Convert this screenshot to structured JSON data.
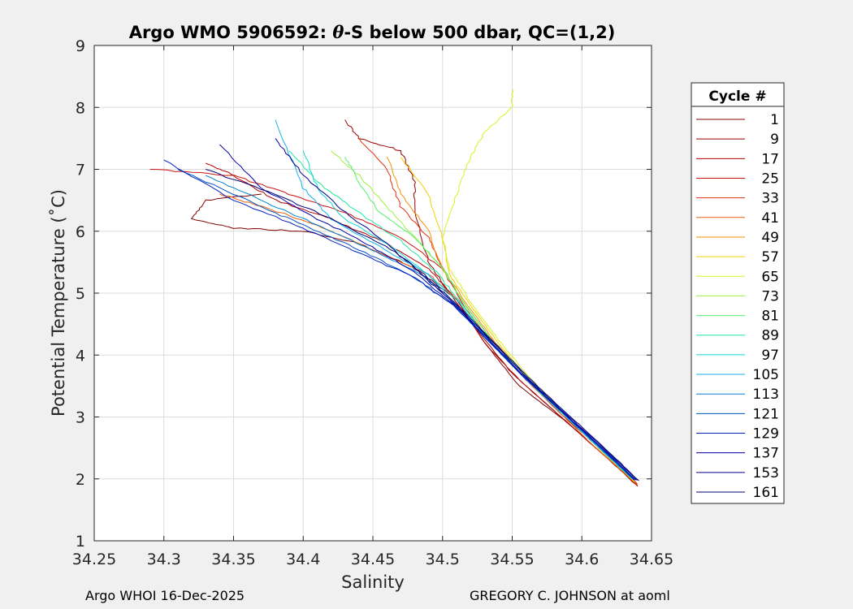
{
  "chart_data": {
    "type": "line",
    "title_prefix": "Argo WMO 5906592: ",
    "title_symbol": "θ",
    "title_suffix": "-S below 500 dbar,  QC=(1,2)",
    "xlabel": "Salinity",
    "ylabel": "Potential Temperature (˚C)",
    "xlim": [
      34.25,
      34.65
    ],
    "ylim": [
      1,
      9
    ],
    "xticks": [
      "34.25",
      "34.3",
      "34.35",
      "34.4",
      "34.45",
      "34.5",
      "34.55",
      "34.6",
      "34.65"
    ],
    "yticks": [
      "1",
      "2",
      "3",
      "4",
      "5",
      "6",
      "7",
      "8",
      "9"
    ],
    "grid": true,
    "legend": {
      "title": "Cycle #",
      "position": "right",
      "entries": [
        {
          "label": "1",
          "color": "#800000"
        },
        {
          "label": "9",
          "color": "#9a0000"
        },
        {
          "label": "17",
          "color": "#b40000"
        },
        {
          "label": "25",
          "color": "#cc1010"
        },
        {
          "label": "33",
          "color": "#e03010"
        },
        {
          "label": "41",
          "color": "#ec6010"
        },
        {
          "label": "49",
          "color": "#f09000"
        },
        {
          "label": "57",
          "color": "#f0d000"
        },
        {
          "label": "65",
          "color": "#d8f020"
        },
        {
          "label": "73",
          "color": "#a0f040"
        },
        {
          "label": "81",
          "color": "#50f070"
        },
        {
          "label": "89",
          "color": "#20e8a0"
        },
        {
          "label": "97",
          "color": "#10d8d0"
        },
        {
          "label": "105",
          "color": "#10b0e8"
        },
        {
          "label": "113",
          "color": "#0080d0"
        },
        {
          "label": "121",
          "color": "#0050c0"
        },
        {
          "label": "129",
          "color": "#0020c0"
        },
        {
          "label": "137",
          "color": "#0000a8"
        },
        {
          "label": "153",
          "color": "#000090"
        },
        {
          "label": "161",
          "color": "#000078"
        }
      ]
    },
    "series": [
      {
        "name": "1",
        "points": [
          [
            34.64,
            1.88
          ],
          [
            34.62,
            2.3
          ],
          [
            34.59,
            2.9
          ],
          [
            34.555,
            3.5
          ],
          [
            34.53,
            4.2
          ],
          [
            34.51,
            4.9
          ],
          [
            34.48,
            5.4
          ],
          [
            34.44,
            5.8
          ],
          [
            34.4,
            6.0
          ],
          [
            34.35,
            6.05
          ],
          [
            34.32,
            6.2
          ],
          [
            34.33,
            6.5
          ],
          [
            34.37,
            6.6
          ]
        ]
      },
      {
        "name": "9",
        "points": [
          [
            34.64,
            1.9
          ],
          [
            34.61,
            2.5
          ],
          [
            34.58,
            3.1
          ],
          [
            34.55,
            3.7
          ],
          [
            34.525,
            4.4
          ],
          [
            34.505,
            5.0
          ],
          [
            34.49,
            5.5
          ],
          [
            34.48,
            6.3
          ],
          [
            34.48,
            6.8
          ],
          [
            34.47,
            7.3
          ],
          [
            34.44,
            7.5
          ],
          [
            34.43,
            7.8
          ]
        ]
      },
      {
        "name": "17",
        "points": [
          [
            34.64,
            1.9
          ],
          [
            34.615,
            2.4
          ],
          [
            34.585,
            3.0
          ],
          [
            34.555,
            3.6
          ],
          [
            34.53,
            4.2
          ],
          [
            34.51,
            4.9
          ],
          [
            34.49,
            5.4
          ],
          [
            34.46,
            5.8
          ],
          [
            34.42,
            6.2
          ],
          [
            34.38,
            6.5
          ],
          [
            34.35,
            6.9
          ],
          [
            34.33,
            7.1
          ]
        ]
      },
      {
        "name": "25",
        "points": [
          [
            34.64,
            1.92
          ],
          [
            34.615,
            2.45
          ],
          [
            34.585,
            3.05
          ],
          [
            34.56,
            3.6
          ],
          [
            34.535,
            4.2
          ],
          [
            34.515,
            4.8
          ],
          [
            34.5,
            5.4
          ],
          [
            34.47,
            5.9
          ],
          [
            34.43,
            6.3
          ],
          [
            34.39,
            6.6
          ],
          [
            34.35,
            6.9
          ],
          [
            34.29,
            7.0
          ]
        ]
      },
      {
        "name": "33",
        "points": [
          [
            34.638,
            1.95
          ],
          [
            34.612,
            2.5
          ],
          [
            34.585,
            3.1
          ],
          [
            34.56,
            3.65
          ],
          [
            34.535,
            4.25
          ],
          [
            34.515,
            4.85
          ],
          [
            34.5,
            5.4
          ],
          [
            34.49,
            5.9
          ],
          [
            34.47,
            6.4
          ],
          [
            34.46,
            7.0
          ],
          [
            34.44,
            7.5
          ]
        ]
      },
      {
        "name": "41",
        "points": [
          [
            34.64,
            1.9
          ],
          [
            34.61,
            2.5
          ],
          [
            34.585,
            3.05
          ],
          [
            34.56,
            3.6
          ],
          [
            34.535,
            4.2
          ],
          [
            34.515,
            4.8
          ],
          [
            34.49,
            5.3
          ],
          [
            34.45,
            5.7
          ],
          [
            34.41,
            6.1
          ],
          [
            34.37,
            6.4
          ],
          [
            34.34,
            6.6
          ]
        ]
      },
      {
        "name": "49",
        "points": [
          [
            34.638,
            1.95
          ],
          [
            34.612,
            2.5
          ],
          [
            34.587,
            3.05
          ],
          [
            34.562,
            3.6
          ],
          [
            34.538,
            4.2
          ],
          [
            34.518,
            4.8
          ],
          [
            34.5,
            5.4
          ],
          [
            34.49,
            6.0
          ],
          [
            34.47,
            6.6
          ],
          [
            34.46,
            7.2
          ]
        ]
      },
      {
        "name": "57",
        "points": [
          [
            34.638,
            1.95
          ],
          [
            34.612,
            2.5
          ],
          [
            34.587,
            3.05
          ],
          [
            34.562,
            3.6
          ],
          [
            34.54,
            4.2
          ],
          [
            34.52,
            4.8
          ],
          [
            34.505,
            5.3
          ],
          [
            34.5,
            5.9
          ],
          [
            34.49,
            6.6
          ],
          [
            34.47,
            7.2
          ]
        ]
      },
      {
        "name": "65",
        "points": [
          [
            34.636,
            2.0
          ],
          [
            34.61,
            2.55
          ],
          [
            34.585,
            3.1
          ],
          [
            34.562,
            3.65
          ],
          [
            34.54,
            4.25
          ],
          [
            34.52,
            4.85
          ],
          [
            34.505,
            5.4
          ],
          [
            34.5,
            5.9
          ],
          [
            34.51,
            6.6
          ],
          [
            34.52,
            7.2
          ],
          [
            34.53,
            7.6
          ],
          [
            34.55,
            8.0
          ],
          [
            34.55,
            8.3
          ]
        ]
      },
      {
        "name": "73",
        "points": [
          [
            34.636,
            2.0
          ],
          [
            34.61,
            2.55
          ],
          [
            34.585,
            3.1
          ],
          [
            34.56,
            3.65
          ],
          [
            34.535,
            4.25
          ],
          [
            34.515,
            4.85
          ],
          [
            34.5,
            5.4
          ],
          [
            34.48,
            5.9
          ],
          [
            34.46,
            6.4
          ],
          [
            34.44,
            6.9
          ],
          [
            34.42,
            7.3
          ]
        ]
      },
      {
        "name": "81",
        "points": [
          [
            34.636,
            2.0
          ],
          [
            34.61,
            2.55
          ],
          [
            34.585,
            3.1
          ],
          [
            34.56,
            3.65
          ],
          [
            34.535,
            4.25
          ],
          [
            34.515,
            4.85
          ],
          [
            34.5,
            5.4
          ],
          [
            34.48,
            5.9
          ],
          [
            34.455,
            6.3
          ],
          [
            34.44,
            6.8
          ],
          [
            34.43,
            7.2
          ]
        ]
      },
      {
        "name": "89",
        "points": [
          [
            34.636,
            2.0
          ],
          [
            34.61,
            2.55
          ],
          [
            34.584,
            3.1
          ],
          [
            34.558,
            3.65
          ],
          [
            34.533,
            4.25
          ],
          [
            34.513,
            4.85
          ],
          [
            34.495,
            5.35
          ],
          [
            34.47,
            5.85
          ],
          [
            34.44,
            6.3
          ],
          [
            34.41,
            6.8
          ],
          [
            34.39,
            7.3
          ]
        ]
      },
      {
        "name": "97",
        "points": [
          [
            34.636,
            2.0
          ],
          [
            34.61,
            2.55
          ],
          [
            34.584,
            3.1
          ],
          [
            34.558,
            3.65
          ],
          [
            34.532,
            4.25
          ],
          [
            34.512,
            4.85
          ],
          [
            34.49,
            5.3
          ],
          [
            34.46,
            5.8
          ],
          [
            34.43,
            6.2
          ],
          [
            34.41,
            6.7
          ],
          [
            34.4,
            7.3
          ]
        ]
      },
      {
        "name": "105",
        "points": [
          [
            34.637,
            2.0
          ],
          [
            34.61,
            2.55
          ],
          [
            34.584,
            3.1
          ],
          [
            34.558,
            3.65
          ],
          [
            34.532,
            4.25
          ],
          [
            34.51,
            4.8
          ],
          [
            34.49,
            5.3
          ],
          [
            34.455,
            5.75
          ],
          [
            34.42,
            6.2
          ],
          [
            34.4,
            6.7
          ],
          [
            34.38,
            7.8
          ]
        ]
      },
      {
        "name": "113",
        "points": [
          [
            34.638,
            1.98
          ],
          [
            34.611,
            2.55
          ],
          [
            34.585,
            3.1
          ],
          [
            34.558,
            3.65
          ],
          [
            34.532,
            4.25
          ],
          [
            34.51,
            4.8
          ],
          [
            34.485,
            5.3
          ],
          [
            34.45,
            5.7
          ],
          [
            34.41,
            6.1
          ],
          [
            34.37,
            6.5
          ],
          [
            34.33,
            6.9
          ]
        ]
      },
      {
        "name": "121",
        "points": [
          [
            34.638,
            1.98
          ],
          [
            34.611,
            2.55
          ],
          [
            34.585,
            3.1
          ],
          [
            34.558,
            3.65
          ],
          [
            34.532,
            4.25
          ],
          [
            34.508,
            4.8
          ],
          [
            34.48,
            5.25
          ],
          [
            34.44,
            5.7
          ],
          [
            34.4,
            6.1
          ],
          [
            34.36,
            6.5
          ],
          [
            34.31,
            7.0
          ]
        ]
      },
      {
        "name": "129",
        "points": [
          [
            34.638,
            1.98
          ],
          [
            34.611,
            2.55
          ],
          [
            34.585,
            3.1
          ],
          [
            34.558,
            3.65
          ],
          [
            34.532,
            4.25
          ],
          [
            34.508,
            4.8
          ],
          [
            34.48,
            5.25
          ],
          [
            34.44,
            5.65
          ],
          [
            34.4,
            6.05
          ],
          [
            34.35,
            6.5
          ],
          [
            34.3,
            7.15
          ]
        ]
      },
      {
        "name": "137",
        "points": [
          [
            34.639,
            1.98
          ],
          [
            34.612,
            2.55
          ],
          [
            34.585,
            3.1
          ],
          [
            34.559,
            3.65
          ],
          [
            34.533,
            4.25
          ],
          [
            34.509,
            4.8
          ],
          [
            34.482,
            5.3
          ],
          [
            34.45,
            5.75
          ],
          [
            34.41,
            6.2
          ],
          [
            34.37,
            6.7
          ],
          [
            34.34,
            7.4
          ]
        ]
      },
      {
        "name": "153",
        "points": [
          [
            34.64,
            1.98
          ],
          [
            34.613,
            2.55
          ],
          [
            34.586,
            3.1
          ],
          [
            34.56,
            3.65
          ],
          [
            34.534,
            4.25
          ],
          [
            34.51,
            4.8
          ],
          [
            34.485,
            5.3
          ],
          [
            34.46,
            5.8
          ],
          [
            34.43,
            6.3
          ],
          [
            34.4,
            6.9
          ],
          [
            34.38,
            7.5
          ]
        ]
      },
      {
        "name": "161",
        "points": [
          [
            34.641,
            1.97
          ],
          [
            34.614,
            2.55
          ],
          [
            34.587,
            3.1
          ],
          [
            34.561,
            3.65
          ],
          [
            34.535,
            4.25
          ],
          [
            34.511,
            4.8
          ],
          [
            34.487,
            5.3
          ],
          [
            34.46,
            5.75
          ],
          [
            34.42,
            6.2
          ],
          [
            34.38,
            6.6
          ],
          [
            34.33,
            7.0
          ]
        ]
      }
    ]
  },
  "footer": {
    "left": "Argo WHOI 16-Dec-2025",
    "right": "GREGORY C. JOHNSON at aoml"
  }
}
